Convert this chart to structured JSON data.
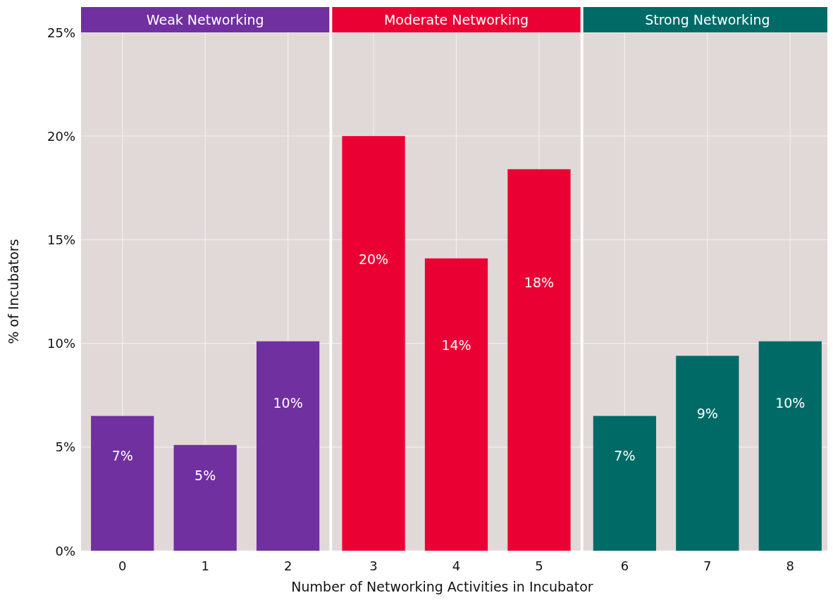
{
  "chart_data": [
    {
      "type": "bar",
      "title": "Weak Networking",
      "categories": [
        "0",
        "1",
        "2"
      ],
      "values": [
        6.5,
        5.1,
        10.1
      ],
      "value_labels": [
        "7%",
        "5%",
        "10%"
      ],
      "color": "#7030a0",
      "ylabel": "% of Incubators",
      "ylim": [
        0,
        25
      ],
      "yticks": [
        {
          "value": 0,
          "label": "0%"
        },
        {
          "value": 5,
          "label": "5%"
        },
        {
          "value": 10,
          "label": "10%"
        },
        {
          "value": 15,
          "label": "15%"
        },
        {
          "value": 20,
          "label": "20%"
        },
        {
          "value": 25,
          "label": "25%"
        }
      ],
      "grid": true
    },
    {
      "type": "bar",
      "title": "Moderate Networking",
      "categories": [
        "3",
        "4",
        "5"
      ],
      "values": [
        20.0,
        14.1,
        18.4
      ],
      "value_labels": [
        "20%",
        "14%",
        "18%"
      ],
      "color": "#eb0033",
      "xlabel": "Number of Networking Activities in Incubator",
      "ylim": [
        0,
        25
      ],
      "yticks": [
        {
          "value": 0,
          "label": null
        },
        {
          "value": 5,
          "label": null
        },
        {
          "value": 10,
          "label": null
        },
        {
          "value": 15,
          "label": null
        },
        {
          "value": 20,
          "label": null
        },
        {
          "value": 25,
          "label": null
        }
      ],
      "grid": true,
      "tick_labels": "x"
    },
    {
      "type": "bar",
      "title": "Strong Networking",
      "categories": [
        "6",
        "7",
        "8"
      ],
      "values": [
        6.5,
        9.4,
        10.1
      ],
      "value_labels": [
        "7%",
        "9%",
        "10%"
      ],
      "color": "#006a66",
      "ylim": [
        0,
        25
      ],
      "yticks": [
        {
          "value": 0,
          "label": null
        },
        {
          "value": 5,
          "label": null
        },
        {
          "value": 10,
          "label": null
        },
        {
          "value": 15,
          "label": null
        },
        {
          "value": 20,
          "label": null
        },
        {
          "value": 25,
          "label": null
        }
      ],
      "grid": true,
      "tick_labels": "x"
    }
  ]
}
